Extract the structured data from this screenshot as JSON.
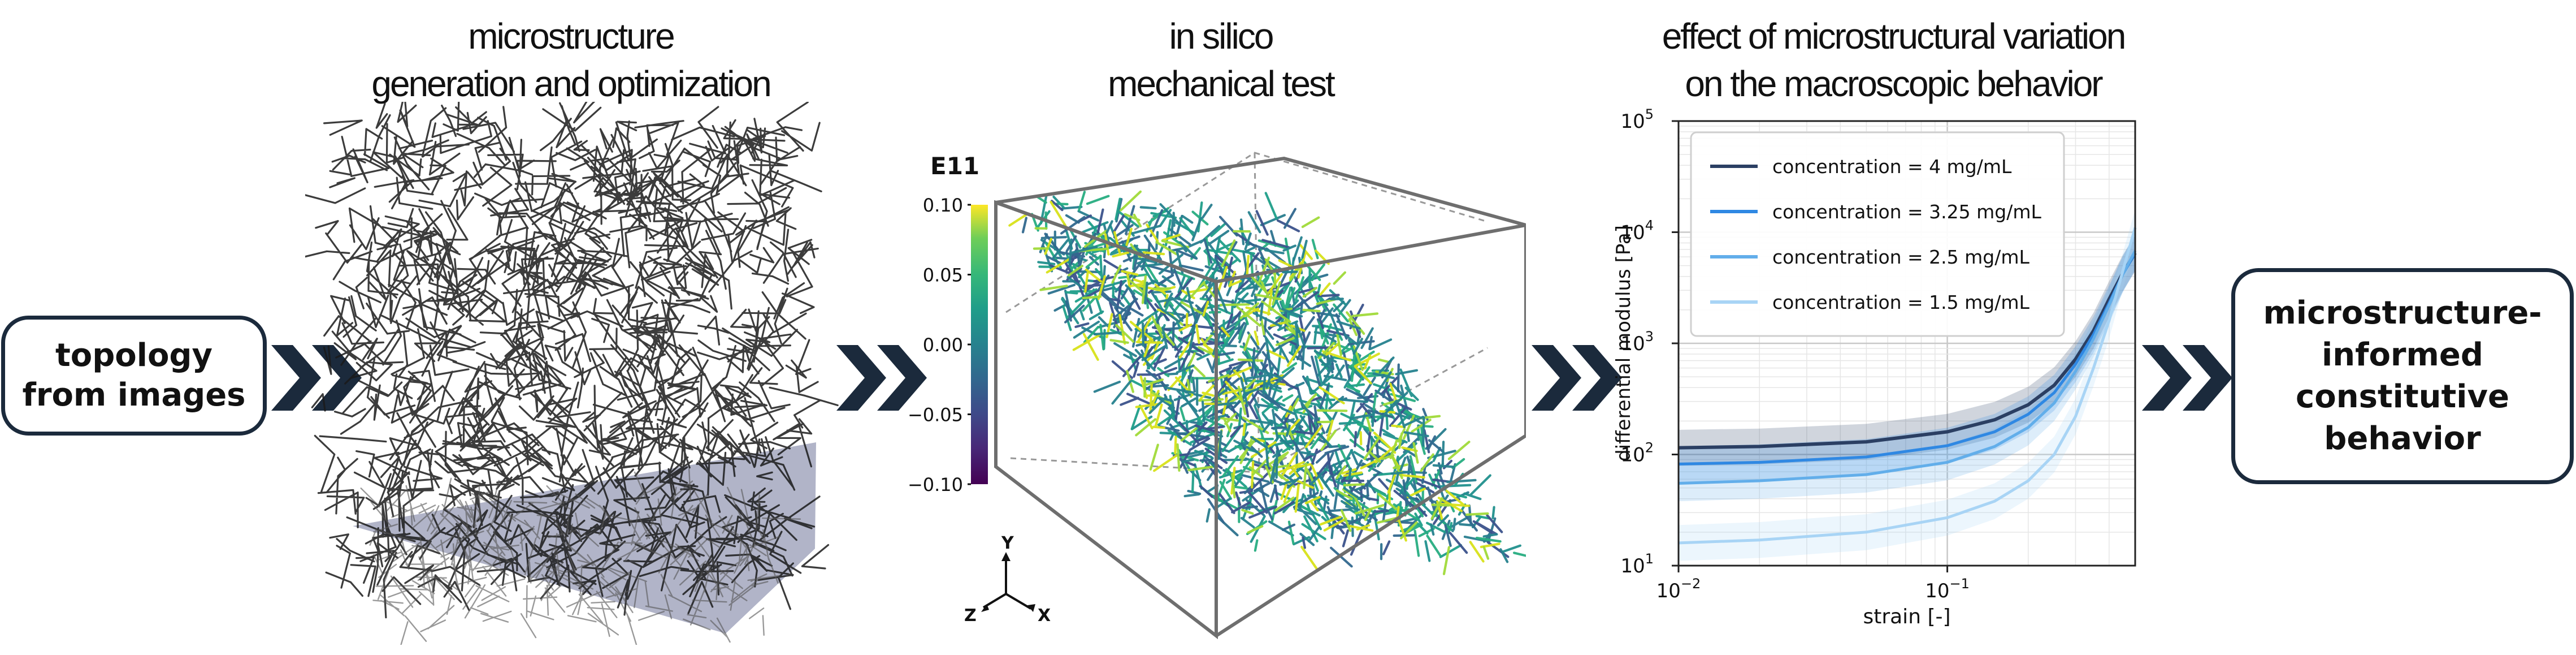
{
  "input_box": {
    "lines": [
      "topology",
      "from images"
    ]
  },
  "output_box": {
    "lines": [
      "microstructure-",
      "informed",
      "constitutive",
      "behavior"
    ]
  },
  "stages": [
    {
      "title_lines": [
        "microstructure",
        "generation and optimization"
      ]
    },
    {
      "title_lines": [
        "in silico",
        "mechanical test"
      ]
    },
    {
      "title_lines": [
        "effect of microstructural variation",
        "on the macroscopic behavior"
      ]
    }
  ],
  "colorbar": {
    "title": "E11",
    "ticks": [
      "0.10",
      "0.05",
      "0.00",
      "−0.05",
      "−0.10"
    ],
    "tick_values": [
      0.1,
      0.05,
      0.0,
      -0.05,
      -0.1
    ]
  },
  "axes_triad": {
    "y": "Y",
    "z": "Z",
    "x": "X"
  },
  "colors": {
    "arrow": "#1b2a3c",
    "box_border": "#1b2a3c",
    "ground_plane": "#a9acc2",
    "fiber_network": "#1a1a1a"
  },
  "chart_data": {
    "type": "line",
    "xlabel": "strain [-]",
    "ylabel": "differential modulus [Pa]",
    "xscale": "log",
    "yscale": "log",
    "xlim": [
      0.01,
      0.5
    ],
    "ylim": [
      10,
      100000
    ],
    "x_ticks": [
      {
        "value": 0.01,
        "base": "10",
        "exp": "−2"
      },
      {
        "value": 0.1,
        "base": "10",
        "exp": "−1"
      }
    ],
    "y_ticks": [
      {
        "value": 10,
        "base": "10",
        "exp": "1"
      },
      {
        "value": 100,
        "base": "10",
        "exp": "2"
      },
      {
        "value": 1000,
        "base": "10",
        "exp": "3"
      },
      {
        "value": 10000,
        "base": "10",
        "exp": "4"
      },
      {
        "value": 100000,
        "base": "10",
        "exp": "5"
      }
    ],
    "grid": true,
    "legend_position": "top-left",
    "x": [
      0.01,
      0.02,
      0.05,
      0.1,
      0.15,
      0.2,
      0.25,
      0.3,
      0.35,
      0.4,
      0.45,
      0.5
    ],
    "series": [
      {
        "name": "concentration = 4 mg/mL",
        "color": "#2b3f63",
        "values": [
          115,
          118,
          130,
          160,
          205,
          280,
          420,
          720,
          1300,
          2500,
          4300,
          6500
        ]
      },
      {
        "name": "concentration = 3.25 mg/mL",
        "color": "#2f88e3",
        "values": [
          82,
          85,
          95,
          120,
          160,
          230,
          360,
          650,
          1200,
          2300,
          4200,
          6500
        ]
      },
      {
        "name": "concentration = 2.5 mg/mL",
        "color": "#62aeea",
        "values": [
          55,
          58,
          66,
          85,
          118,
          175,
          290,
          560,
          1100,
          2200,
          4200,
          6800
        ]
      },
      {
        "name": "concentration = 1.5 mg/mL",
        "color": "#a8d4f5",
        "values": [
          16,
          17,
          20,
          27,
          38,
          58,
          100,
          220,
          600,
          1600,
          4500,
          11000
        ]
      }
    ]
  }
}
